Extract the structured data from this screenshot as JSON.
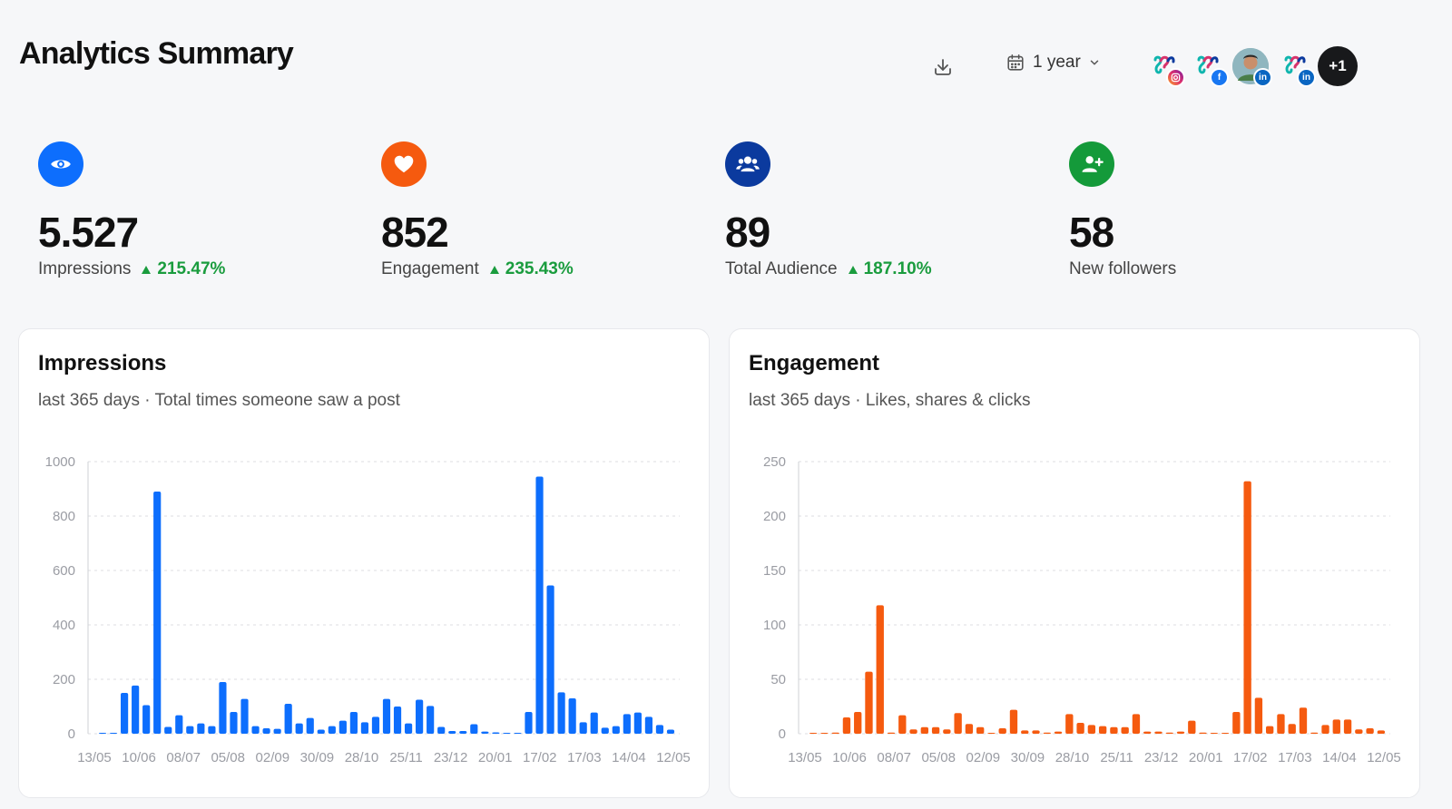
{
  "header": {
    "title": "Analytics Summary",
    "date_range": "1 year",
    "extra_accounts": "+1"
  },
  "accounts": [
    {
      "network": "instagram",
      "badge_color": "#e1306c",
      "avatar_icon": "brand-logo-icon"
    },
    {
      "network": "facebook",
      "badge_color": "#1877f2",
      "avatar_icon": "brand-logo-icon"
    },
    {
      "network": "linkedin",
      "badge_color": "#0a66c2",
      "avatar_icon": "person-photo"
    },
    {
      "network": "linkedin",
      "badge_color": "#0a66c2",
      "avatar_icon": "brand-logo-icon"
    }
  ],
  "stats": [
    {
      "icon": "eye-icon",
      "color": "#0d6efd",
      "value": "5.527",
      "label": "Impressions",
      "change": "215.47%"
    },
    {
      "icon": "heart-icon",
      "color": "#f55a0f",
      "value": "852",
      "label": "Engagement",
      "change": "235.43%"
    },
    {
      "icon": "users-icon",
      "color": "#0b3a9e",
      "value": "89",
      "label": "Total Audience",
      "change": "187.10%"
    },
    {
      "icon": "add-user-icon",
      "color": "#149a3a",
      "value": "58",
      "label": "New followers",
      "change": ""
    }
  ],
  "cards": {
    "impressions": {
      "title": "Impressions",
      "subtitle": "last 365 days · Total times someone saw a post"
    },
    "engagement": {
      "title": "Engagement",
      "subtitle": "last 365 days · Likes, shares & clicks"
    }
  },
  "chart_data": [
    {
      "type": "bar",
      "title": "Impressions",
      "color": "#0d6efd",
      "ylim": [
        0,
        1000
      ],
      "yticks": [
        0,
        200,
        400,
        600,
        800,
        1000
      ],
      "x_tick_labels": [
        "13/05",
        "10/06",
        "08/07",
        "05/08",
        "02/09",
        "30/09",
        "28/10",
        "25/11",
        "23/12",
        "20/01",
        "17/02",
        "17/03",
        "14/04",
        "12/05"
      ],
      "grid": true,
      "values": [
        3,
        3,
        150,
        177,
        105,
        890,
        25,
        68,
        28,
        38,
        28,
        190,
        80,
        128,
        28,
        20,
        18,
        110,
        38,
        58,
        15,
        28,
        48,
        80,
        42,
        62,
        128,
        100,
        38,
        125,
        102,
        25,
        10,
        10,
        35,
        8,
        5,
        3,
        0,
        80,
        945,
        545,
        152,
        130,
        42,
        78,
        22,
        28,
        72,
        78,
        62,
        32,
        15
      ]
    },
    {
      "type": "bar",
      "title": "Engagement",
      "color": "#f55a0f",
      "ylim": [
        0,
        250
      ],
      "yticks": [
        0,
        50,
        100,
        150,
        200,
        250
      ],
      "x_tick_labels": [
        "13/05",
        "10/06",
        "08/07",
        "05/08",
        "02/09",
        "30/09",
        "28/10",
        "25/11",
        "23/12",
        "20/01",
        "17/02",
        "17/03",
        "14/04",
        "12/05"
      ],
      "grid": true,
      "values": [
        0,
        0,
        1,
        15,
        20,
        57,
        118,
        1,
        17,
        4,
        6,
        6,
        4,
        19,
        9,
        6,
        0,
        5,
        22,
        3,
        3,
        1,
        2,
        18,
        10,
        8,
        7,
        6,
        6,
        18,
        2,
        2,
        1,
        2,
        12,
        1,
        0,
        0,
        20,
        232,
        33,
        7,
        18,
        9,
        24,
        1,
        8,
        13,
        13,
        4,
        5,
        3
      ]
    }
  ]
}
